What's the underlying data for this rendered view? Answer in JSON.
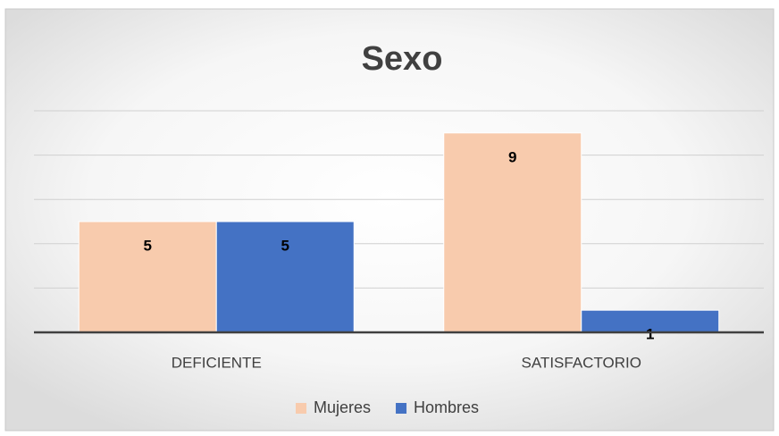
{
  "chart_data": {
    "type": "bar",
    "title": "Sexo",
    "categories": [
      "DEFICIENTE",
      "SATISFACTORIO"
    ],
    "series": [
      {
        "name": "Mujeres",
        "color": "#f8cbad",
        "values": [
          5,
          9
        ]
      },
      {
        "name": "Hombres",
        "color": "#4472c4",
        "values": [
          5,
          1
        ]
      }
    ],
    "ylim": [
      0,
      10
    ],
    "yticks": [
      0,
      2,
      4,
      6,
      8,
      10
    ],
    "grid": true,
    "legend": "bottom"
  }
}
